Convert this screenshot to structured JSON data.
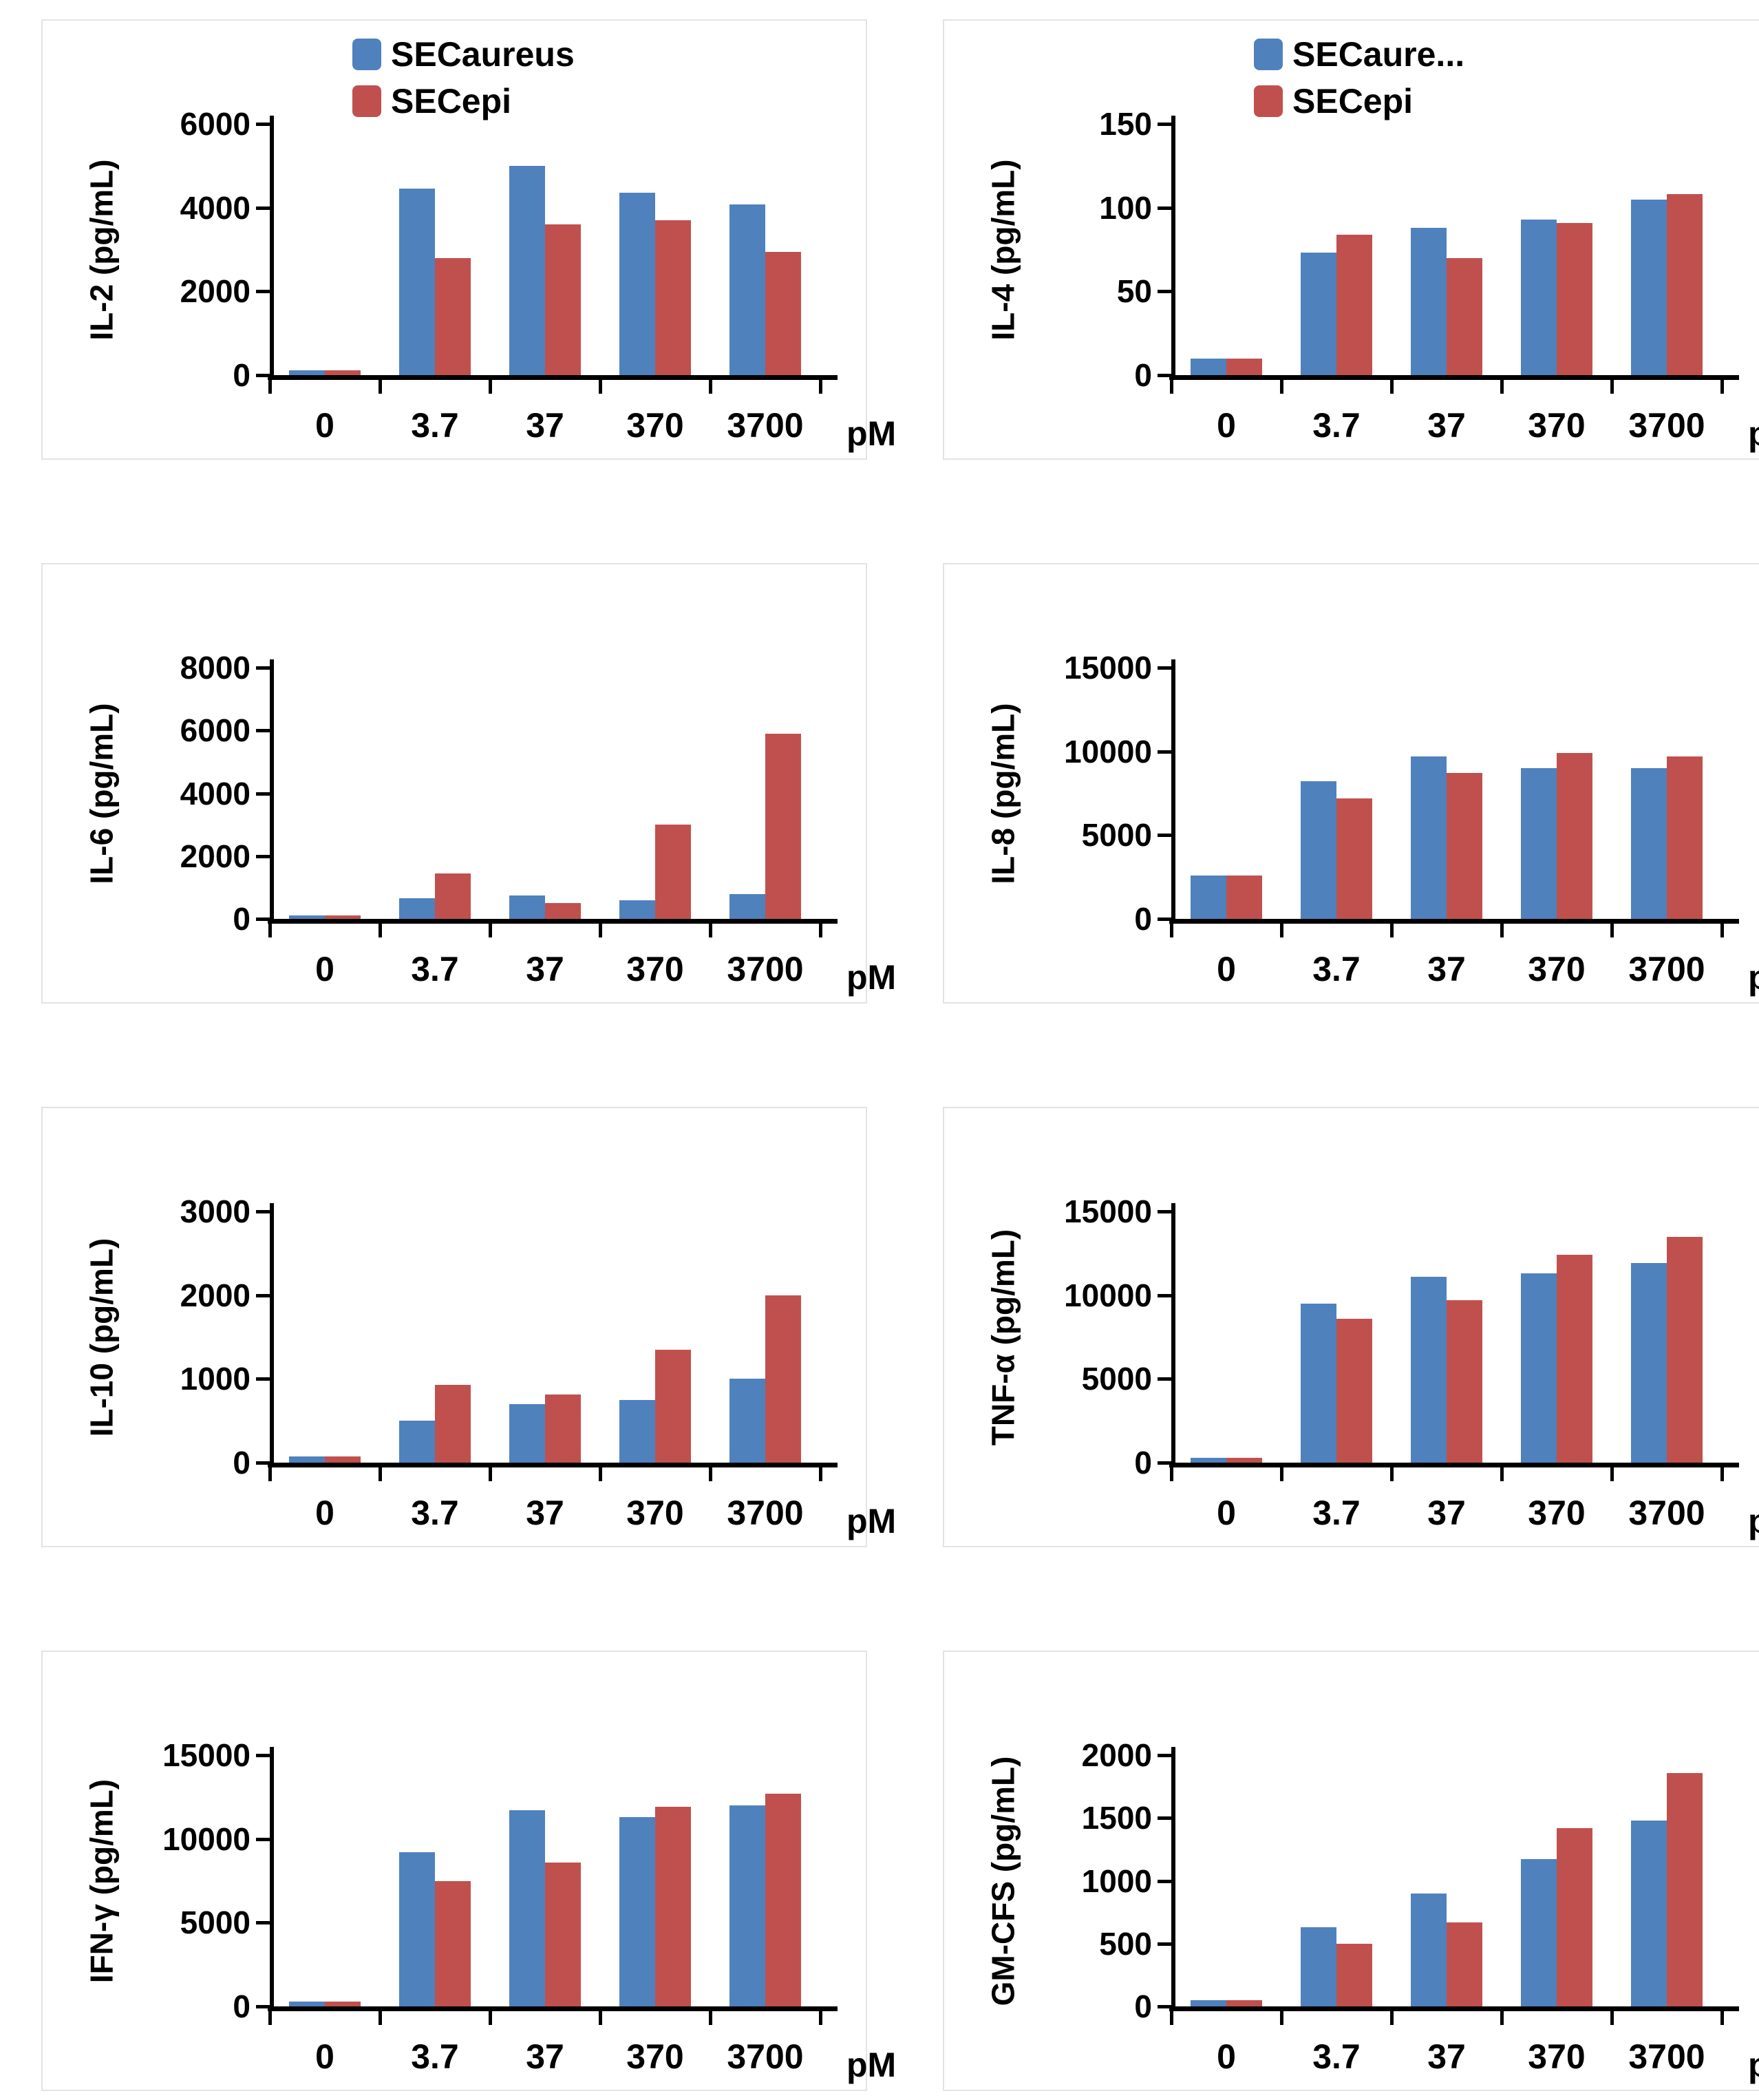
{
  "page": {
    "background": "#ffffff",
    "unit": "pM"
  },
  "legend_series": [
    {
      "name": "SECaureus",
      "color": "#4F81BD"
    },
    {
      "name": "SECepi",
      "color": "#C0504D"
    }
  ],
  "chart_data": [
    {
      "type": "bar",
      "ylabel": "IL-2 (pg/mL)",
      "categories": [
        "0",
        "3.7",
        "37",
        "370",
        "3700"
      ],
      "x_unit": "pM",
      "ylim": [
        0,
        6000
      ],
      "yticks": [
        0,
        2000,
        4000,
        6000
      ],
      "grid": false,
      "legend_visible": true,
      "legend_position": "top",
      "legend_labels": [
        "SECaureus",
        "SECepi"
      ],
      "series": [
        {
          "name": "SECaureus",
          "color": "#4F81BD",
          "values": [
            120,
            4450,
            5000,
            4350,
            4080
          ]
        },
        {
          "name": "SECepi",
          "color": "#C0504D",
          "values": [
            120,
            2800,
            3600,
            3700,
            2950
          ]
        }
      ]
    },
    {
      "type": "bar",
      "ylabel": "IL-4 (pg/mL)",
      "categories": [
        "0",
        "3.7",
        "37",
        "370",
        "3700"
      ],
      "x_unit": "pM",
      "ylim": [
        0,
        150
      ],
      "yticks": [
        0,
        50,
        100,
        150
      ],
      "grid": false,
      "legend_visible": true,
      "legend_position": "top",
      "legend_labels": [
        "SECaure...",
        "SECepi"
      ],
      "series": [
        {
          "name": "SECaureus",
          "color": "#4F81BD",
          "values": [
            10,
            73,
            88,
            93,
            105
          ]
        },
        {
          "name": "SECepi",
          "color": "#C0504D",
          "values": [
            10,
            84,
            70,
            91,
            108
          ]
        }
      ]
    },
    {
      "type": "bar",
      "ylabel": "IL-6 (pg/mL)",
      "categories": [
        "0",
        "3.7",
        "37",
        "370",
        "3700"
      ],
      "x_unit": "pM",
      "ylim": [
        0,
        8000
      ],
      "yticks": [
        0,
        2000,
        4000,
        6000,
        8000
      ],
      "grid": false,
      "legend_visible": false,
      "legend_labels": [],
      "series": [
        {
          "name": "SECaureus",
          "color": "#4F81BD",
          "values": [
            100,
            650,
            750,
            600,
            800
          ]
        },
        {
          "name": "SECepi",
          "color": "#C0504D",
          "values": [
            100,
            1450,
            500,
            3000,
            5900
          ]
        }
      ]
    },
    {
      "type": "bar",
      "ylabel": "IL-8 (pg/mL)",
      "categories": [
        "0",
        "3.7",
        "37",
        "370",
        "3700"
      ],
      "x_unit": "pM",
      "ylim": [
        0,
        15000
      ],
      "yticks": [
        0,
        5000,
        10000,
        15000
      ],
      "grid": false,
      "legend_visible": false,
      "legend_labels": [],
      "series": [
        {
          "name": "SECaureus",
          "color": "#4F81BD",
          "values": [
            2600,
            8200,
            9700,
            9000,
            9000
          ]
        },
        {
          "name": "SECepi",
          "color": "#C0504D",
          "values": [
            2600,
            7200,
            8700,
            9900,
            9700
          ]
        }
      ]
    },
    {
      "type": "bar",
      "ylabel": "IL-10 (pg/mL)",
      "categories": [
        "0",
        "3.7",
        "37",
        "370",
        "3700"
      ],
      "x_unit": "pM",
      "ylim": [
        0,
        3000
      ],
      "yticks": [
        0,
        1000,
        2000,
        3000
      ],
      "grid": false,
      "legend_visible": false,
      "legend_labels": [],
      "series": [
        {
          "name": "SECaureus",
          "color": "#4F81BD",
          "values": [
            70,
            500,
            700,
            750,
            1000
          ]
        },
        {
          "name": "SECepi",
          "color": "#C0504D",
          "values": [
            70,
            930,
            810,
            1350,
            2000
          ]
        }
      ]
    },
    {
      "type": "bar",
      "ylabel": "TNF-α (pg/mL)",
      "categories": [
        "0",
        "3.7",
        "37",
        "370",
        "3700"
      ],
      "x_unit": "pM",
      "ylim": [
        0,
        15000
      ],
      "yticks": [
        0,
        5000,
        10000,
        15000
      ],
      "grid": false,
      "legend_visible": false,
      "legend_labels": [],
      "series": [
        {
          "name": "SECaureus",
          "color": "#4F81BD",
          "values": [
            300,
            9500,
            11100,
            11300,
            11900
          ]
        },
        {
          "name": "SECepi",
          "color": "#C0504D",
          "values": [
            300,
            8600,
            9700,
            12400,
            13500
          ]
        }
      ]
    },
    {
      "type": "bar",
      "ylabel": "IFN-γ (pg/mL)",
      "categories": [
        "0",
        "3.7",
        "37",
        "370",
        "3700"
      ],
      "x_unit": "pM",
      "ylim": [
        0,
        15000
      ],
      "yticks": [
        0,
        5000,
        10000,
        15000
      ],
      "grid": false,
      "legend_visible": false,
      "legend_labels": [],
      "series": [
        {
          "name": "SECaureus",
          "color": "#4F81BD",
          "values": [
            300,
            9200,
            11700,
            11300,
            12000
          ]
        },
        {
          "name": "SECepi",
          "color": "#C0504D",
          "values": [
            300,
            7500,
            8600,
            11900,
            12700
          ]
        }
      ]
    },
    {
      "type": "bar",
      "ylabel": "GM-CFS (pg/mL)",
      "categories": [
        "0",
        "3.7",
        "37",
        "370",
        "3700"
      ],
      "x_unit": "pM",
      "ylim": [
        0,
        2000
      ],
      "yticks": [
        0,
        500,
        1000,
        1500,
        2000
      ],
      "grid": false,
      "legend_visible": false,
      "legend_labels": [],
      "series": [
        {
          "name": "SECaureus",
          "color": "#4F81BD",
          "values": [
            50,
            630,
            900,
            1170,
            1480
          ]
        },
        {
          "name": "SECepi",
          "color": "#C0504D",
          "values": [
            50,
            500,
            670,
            1420,
            1860
          ]
        }
      ]
    }
  ]
}
